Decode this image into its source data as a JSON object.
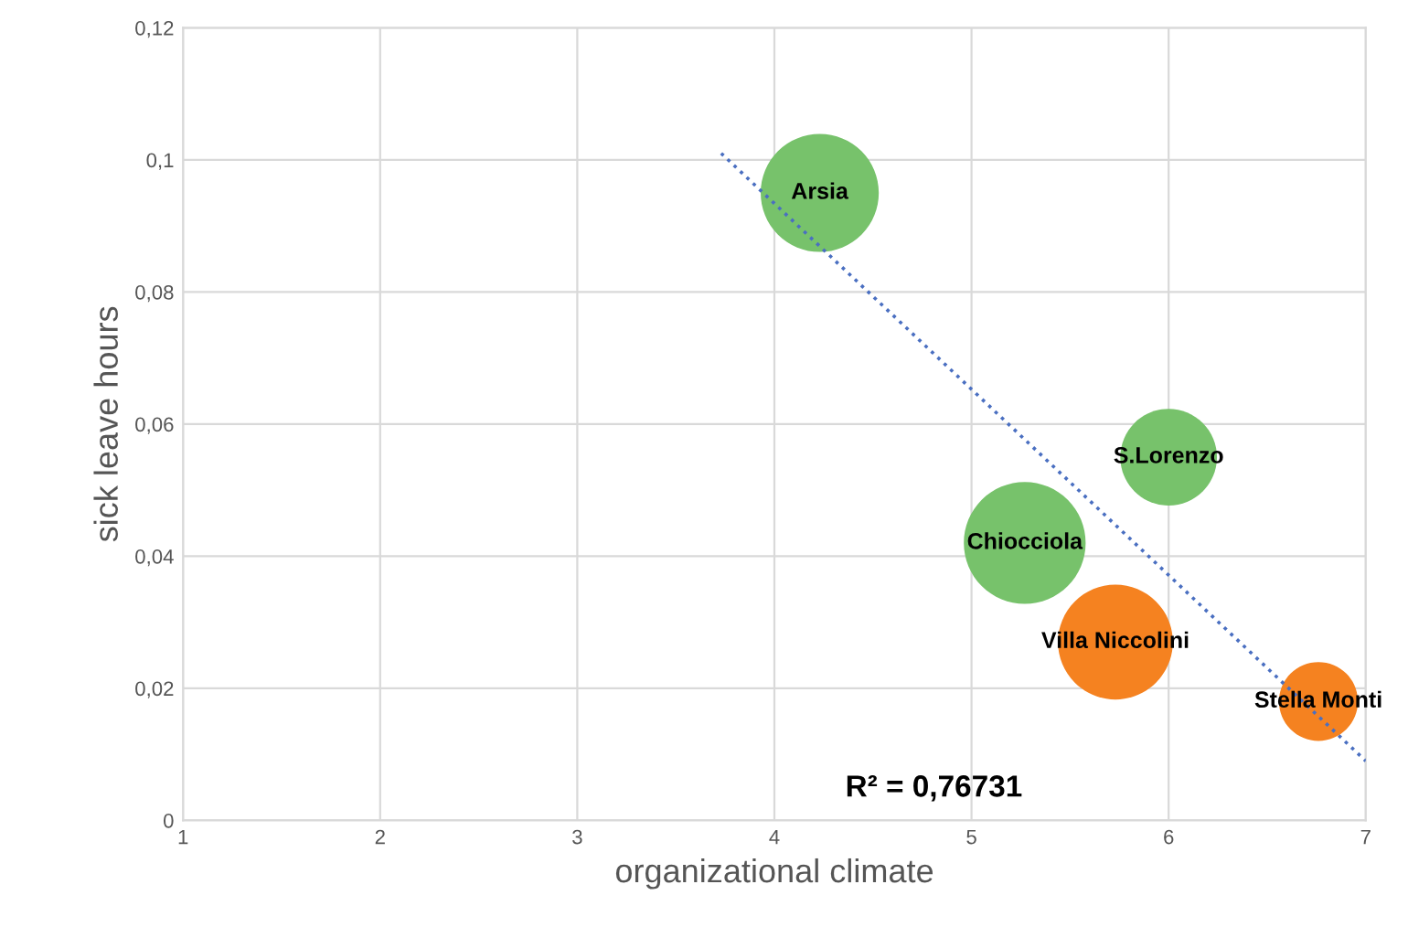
{
  "chart_data": {
    "type": "bubble",
    "xlabel": "organizational climate",
    "ylabel": "sick leave hours",
    "xlim": [
      1,
      7
    ],
    "xticks": [
      1,
      2,
      3,
      4,
      5,
      6,
      7
    ],
    "ylim": [
      0,
      0.12
    ],
    "yticks": [
      0,
      {
        "value": 0.02,
        "label": "0,02"
      },
      {
        "value": 0.04,
        "label": "0,04"
      },
      {
        "value": 0.06,
        "label": "0,06"
      },
      {
        "value": 0.08,
        "label": "0,08"
      },
      {
        "value": 0.1,
        "label": "0,1"
      },
      {
        "value": 0.12,
        "label": "0,12"
      }
    ],
    "grid": true,
    "legend": false,
    "series": [
      {
        "name": "Arsia",
        "color": "#77c26b",
        "x": [
          4.23
        ],
        "values": [
          0.095
        ],
        "sizes": [
          0.94
        ]
      },
      {
        "name": "S.Lorenzo",
        "color": "#77c26b",
        "x": [
          6.0
        ],
        "values": [
          0.055
        ],
        "sizes": [
          0.63
        ]
      },
      {
        "name": "Chiocciola",
        "color": "#77c26b",
        "x": [
          5.27
        ],
        "values": [
          0.042
        ],
        "sizes": [
          1
        ]
      },
      {
        "name": "Villa Niccolini",
        "color": "#f58220",
        "x": [
          5.73
        ],
        "values": [
          0.027
        ],
        "sizes": [
          0.89
        ]
      },
      {
        "name": "Stella Monti",
        "color": "#f58220",
        "x": [
          6.76
        ],
        "values": [
          0.018
        ],
        "sizes": [
          0.42
        ]
      },
      {
        "type": "line",
        "color": "#4a6fc1",
        "line_style": "dotted",
        "x": [
          3.73,
          7
        ],
        "values": [
          0.101,
          0.009
        ]
      }
    ],
    "annotations": [
      "R² = 0,76731"
    ]
  }
}
